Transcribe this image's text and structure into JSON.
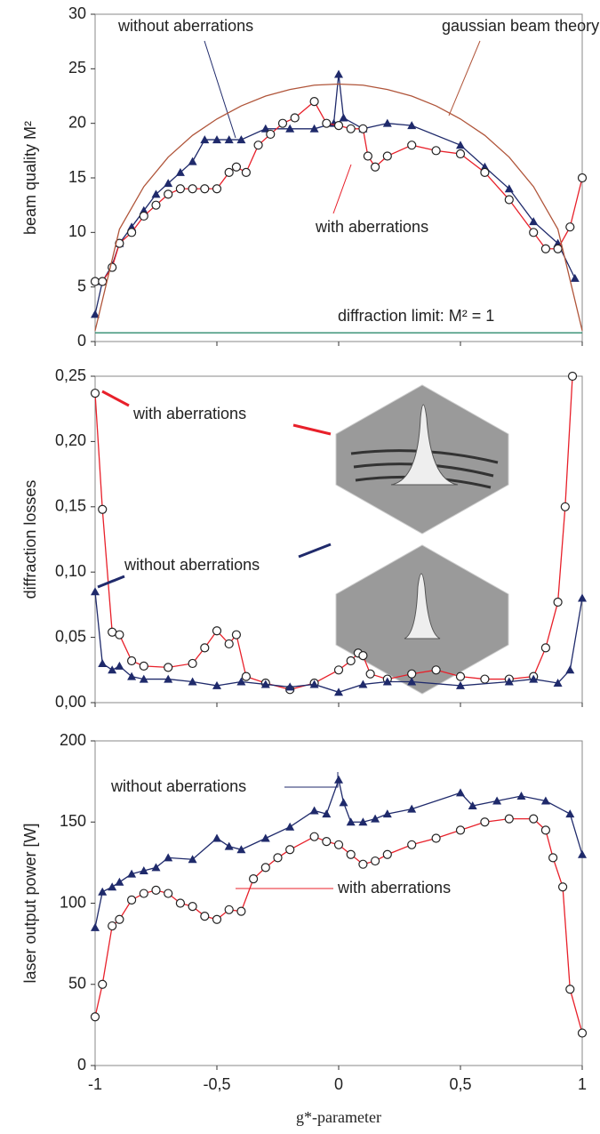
{
  "chart_data": [
    {
      "type": "line",
      "y_label": "beam quality M²",
      "xlim": [
        -1,
        1
      ],
      "ylim": [
        0,
        30
      ],
      "yticks": [
        0,
        5,
        10,
        15,
        20,
        25,
        30
      ],
      "series": [
        {
          "name": "without aberrations",
          "color": "#1f2a6b",
          "marker": "triangle",
          "x": [
            -1,
            -0.97,
            -0.93,
            -0.9,
            -0.85,
            -0.8,
            -0.75,
            -0.7,
            -0.65,
            -0.6,
            -0.55,
            -0.5,
            -0.45,
            -0.4,
            -0.3,
            -0.2,
            -0.1,
            -0.02,
            0,
            0.02,
            0.1,
            0.2,
            0.3,
            0.5,
            0.6,
            0.7,
            0.8,
            0.9,
            0.97
          ],
          "values": [
            2.5,
            5.5,
            7,
            9,
            10.5,
            12,
            13.5,
            14.5,
            15.5,
            16.5,
            18.5,
            18.5,
            18.5,
            18.5,
            19.5,
            19.5,
            19.5,
            20,
            24.5,
            20.5,
            19.5,
            20,
            19.8,
            18,
            16,
            14,
            11,
            9,
            5.8
          ]
        },
        {
          "name": "with aberrations",
          "color": "#e8202a",
          "marker": "circle",
          "x": [
            -1,
            -0.97,
            -0.93,
            -0.9,
            -0.85,
            -0.8,
            -0.75,
            -0.7,
            -0.65,
            -0.6,
            -0.55,
            -0.5,
            -0.45,
            -0.42,
            -0.38,
            -0.33,
            -0.28,
            -0.23,
            -0.18,
            -0.1,
            -0.05,
            0,
            0.05,
            0.1,
            0.12,
            0.15,
            0.2,
            0.3,
            0.4,
            0.5,
            0.6,
            0.7,
            0.8,
            0.85,
            0.9,
            0.95,
            1
          ],
          "values": [
            5.5,
            5.5,
            6.8,
            9,
            10,
            11.5,
            12.5,
            13.5,
            14,
            14,
            14,
            14,
            15.5,
            16,
            15.5,
            18,
            19,
            20,
            20.5,
            22,
            20,
            19.8,
            19.5,
            19.5,
            17,
            16,
            17,
            18,
            17.5,
            17.2,
            15.5,
            13,
            10,
            8.5,
            8.5,
            10.5,
            15
          ]
        },
        {
          "name": "gaussian beam theory",
          "color": "#b0553a",
          "marker": "none",
          "x": [
            -1,
            -0.9,
            -0.8,
            -0.7,
            -0.6,
            -0.5,
            -0.4,
            -0.3,
            -0.2,
            -0.1,
            0,
            0.1,
            0.2,
            0.3,
            0.4,
            0.5,
            0.6,
            0.7,
            0.8,
            0.9,
            1
          ],
          "values": [
            1,
            10.3,
            14.2,
            16.9,
            18.9,
            20.4,
            21.6,
            22.5,
            23.1,
            23.5,
            23.6,
            23.5,
            23.1,
            22.5,
            21.6,
            20.4,
            18.9,
            16.9,
            14.2,
            10.3,
            1
          ]
        },
        {
          "name": "diffraction limit: M² = 1",
          "color": "#2e8b6e",
          "marker": "none",
          "x": [
            -1,
            1
          ],
          "values": [
            0.8,
            0.8
          ]
        }
      ]
    },
    {
      "type": "line",
      "y_label": "diffraction losses",
      "xlim": [
        -1,
        1
      ],
      "ylim": [
        0,
        0.25
      ],
      "yticks": [
        {
          "value": 0,
          "label": "0,00"
        },
        {
          "value": 0.05,
          "label": "0,05"
        },
        {
          "value": 0.1,
          "label": "0,10"
        },
        {
          "value": 0.15,
          "label": "0,15"
        },
        {
          "value": 0.2,
          "label": "0,20"
        },
        {
          "value": 0.25,
          "label": "0,25"
        }
      ],
      "series": [
        {
          "name": "with aberrations",
          "color": "#e8202a",
          "marker": "circle",
          "x": [
            -1,
            -0.97,
            -0.93,
            -0.9,
            -0.85,
            -0.8,
            -0.7,
            -0.6,
            -0.55,
            -0.5,
            -0.45,
            -0.42,
            -0.38,
            -0.3,
            -0.2,
            -0.1,
            0,
            0.05,
            0.08,
            0.1,
            0.13,
            0.2,
            0.3,
            0.4,
            0.5,
            0.6,
            0.7,
            0.8,
            0.85,
            0.9,
            0.93,
            0.96
          ],
          "values": [
            0.237,
            0.148,
            0.054,
            0.052,
            0.032,
            0.028,
            0.027,
            0.03,
            0.042,
            0.055,
            0.045,
            0.052,
            0.02,
            0.015,
            0.01,
            0.015,
            0.025,
            0.032,
            0.038,
            0.036,
            0.022,
            0.018,
            0.022,
            0.025,
            0.02,
            0.018,
            0.018,
            0.02,
            0.042,
            0.077,
            0.15,
            0.25
          ]
        },
        {
          "name": "without aberrations",
          "color": "#1f2a6b",
          "marker": "triangle",
          "x": [
            -1,
            -0.97,
            -0.93,
            -0.9,
            -0.85,
            -0.8,
            -0.7,
            -0.6,
            -0.5,
            -0.4,
            -0.3,
            -0.2,
            -0.1,
            0,
            0.1,
            0.2,
            0.3,
            0.5,
            0.7,
            0.8,
            0.9,
            0.95,
            1
          ],
          "values": [
            0.085,
            0.03,
            0.025,
            0.028,
            0.02,
            0.018,
            0.018,
            0.016,
            0.013,
            0.016,
            0.014,
            0.012,
            0.014,
            0.008,
            0.014,
            0.016,
            0.016,
            0.013,
            0.016,
            0.018,
            0.015,
            0.025,
            0.08
          ]
        }
      ]
    },
    {
      "type": "line",
      "y_label": "laser output power [W]",
      "x_label": "g*-parameter",
      "xlim": [
        -1,
        1
      ],
      "ylim": [
        0,
        200
      ],
      "yticks": [
        0,
        50,
        100,
        150,
        200
      ],
      "xticks": [
        -1,
        {
          "value": -0.5,
          "label": "-0,5"
        },
        0,
        {
          "value": 0.5,
          "label": "0,5"
        },
        1
      ],
      "series": [
        {
          "name": "without aberrations",
          "color": "#1f2a6b",
          "marker": "triangle",
          "x": [
            -1,
            -0.97,
            -0.93,
            -0.9,
            -0.85,
            -0.8,
            -0.75,
            -0.7,
            -0.6,
            -0.5,
            -0.45,
            -0.4,
            -0.3,
            -0.2,
            -0.1,
            -0.05,
            0,
            0.02,
            0.05,
            0.1,
            0.15,
            0.2,
            0.3,
            0.5,
            0.55,
            0.65,
            0.75,
            0.85,
            0.95,
            1
          ],
          "values": [
            85,
            107,
            110,
            113,
            118,
            120,
            122,
            128,
            127,
            140,
            135,
            133,
            140,
            147,
            157,
            155,
            176,
            162,
            150,
            150,
            152,
            155,
            158,
            168,
            160,
            163,
            166,
            163,
            155,
            130
          ]
        },
        {
          "name": "with aberrations",
          "color": "#e8202a",
          "marker": "circle",
          "x": [
            -1,
            -0.97,
            -0.93,
            -0.9,
            -0.85,
            -0.8,
            -0.75,
            -0.7,
            -0.65,
            -0.6,
            -0.55,
            -0.5,
            -0.45,
            -0.4,
            -0.35,
            -0.3,
            -0.25,
            -0.2,
            -0.1,
            -0.05,
            0,
            0.05,
            0.1,
            0.15,
            0.2,
            0.3,
            0.4,
            0.5,
            0.6,
            0.7,
            0.8,
            0.85,
            0.88,
            0.92,
            0.95,
            1
          ],
          "values": [
            30,
            50,
            86,
            90,
            102,
            106,
            108,
            106,
            100,
            98,
            92,
            90,
            96,
            95,
            115,
            122,
            128,
            133,
            141,
            138,
            136,
            130,
            124,
            126,
            130,
            136,
            140,
            145,
            150,
            152,
            152,
            145,
            128,
            110,
            47,
            20
          ]
        }
      ]
    }
  ]
}
